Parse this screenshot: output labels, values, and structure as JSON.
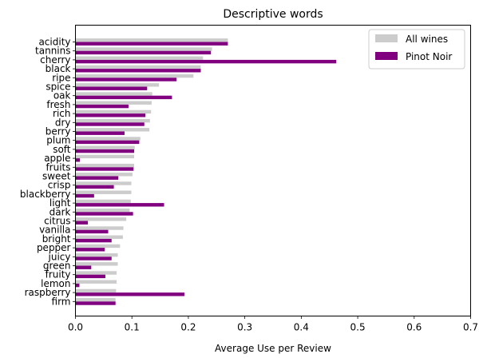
{
  "chart_data": {
    "type": "bar",
    "orientation": "horizontal",
    "title": "Descriptive words",
    "xlabel": "Average Use per Review",
    "ylabel": "",
    "xlim": [
      0,
      0.7
    ],
    "xticks": [
      "0.0",
      "0.1",
      "0.2",
      "0.3",
      "0.4",
      "0.5",
      "0.6",
      "0.7"
    ],
    "grid": false,
    "legend_position": "top-right",
    "categories": [
      "acidity",
      "tannins",
      "cherry",
      "black",
      "ripe",
      "spice",
      "oak",
      "fresh",
      "rich",
      "dry",
      "berry",
      "plum",
      "soft",
      "apple",
      "fruits",
      "sweet",
      "crisp",
      "blackberry",
      "light",
      "dark",
      "citrus",
      "vanilla",
      "bright",
      "pepper",
      "juicy",
      "green",
      "fruity",
      "lemon",
      "raspberry",
      "firm"
    ],
    "series": [
      {
        "name": "All wines",
        "color": "#cccccc",
        "values": [
          0.27,
          0.242,
          0.226,
          0.222,
          0.209,
          0.148,
          0.136,
          0.135,
          0.134,
          0.132,
          0.131,
          0.115,
          0.105,
          0.104,
          0.104,
          0.101,
          0.099,
          0.099,
          0.098,
          0.096,
          0.09,
          0.085,
          0.084,
          0.079,
          0.075,
          0.075,
          0.073,
          0.073,
          0.072,
          0.071
        ]
      },
      {
        "name": "Pinot Noir",
        "color": "#800080",
        "values": [
          0.27,
          0.24,
          0.462,
          0.222,
          0.179,
          0.127,
          0.171,
          0.094,
          0.124,
          0.122,
          0.087,
          0.113,
          0.104,
          0.008,
          0.103,
          0.076,
          0.068,
          0.033,
          0.157,
          0.102,
          0.022,
          0.058,
          0.064,
          0.052,
          0.064,
          0.028,
          0.053,
          0.007,
          0.193,
          0.071
        ]
      }
    ]
  }
}
